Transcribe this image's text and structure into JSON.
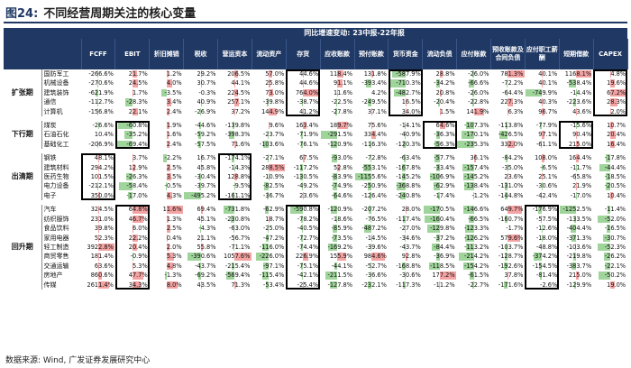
{
  "figure": {
    "label": "图24:",
    "title": "不同经营周期关注的核心变量"
  },
  "table": {
    "banner": "同比增速变动: 23中报-22年报",
    "columns": [
      "FCFF",
      "EBIT",
      "折旧摊销",
      "税收",
      "营运资本",
      "流动资产",
      "存货",
      "应收账款",
      "预付账款",
      "货币资金",
      "流动负债",
      "应付账款",
      "预收账款及合同负债",
      "应付职工薪酬",
      "短期借款",
      "CAPEX"
    ],
    "groups": [
      {
        "name": "扩张期",
        "rows": [
          {
            "industry": "国防军工",
            "values": [
              "-266.6%",
              "21.7%",
              "1.2%",
              "29.2%",
              "206.5%",
              "57.0%",
              "44.6%",
              "118.4%",
              "131.8%",
              "-587.9%",
              "28.8%",
              "-26.0%",
              "781.3%",
              "40.1%",
              "1168.1%",
              "4.8%"
            ]
          },
          {
            "industry": "机械设备",
            "values": [
              "-270.6%",
              "24.5%",
              "4.0%",
              "30.7%",
              "44.1%",
              "25.8%",
              "44.6%",
              "91.1%",
              "-393.4%",
              "-710.3%",
              "-34.2%",
              "-66.6%",
              "-72.2%",
              "40.1%",
              "-538.4%",
              "19.6%"
            ]
          },
          {
            "industry": "建筑装饰",
            "values": [
              "-621.9%",
              "1.7%",
              "-3.5%",
              "-0.3%",
              "224.5%",
              "73.0%",
              "764.0%",
              "11.6%",
              "4.2%",
              "-482.7%",
              "20.8%",
              "-26.0%",
              "-64.4%",
              "-749.9%",
              "-14.4%",
              "67.2%"
            ]
          },
          {
            "industry": "通信",
            "values": [
              "-112.7%",
              "-28.3%",
              "3.4%",
              "40.9%",
              "257.1%",
              "-39.8%",
              "-38.7%",
              "-22.5%",
              "-249.5%",
              "16.5%",
              "-20.4%",
              "-22.8%",
              "227.3%",
              "40.3%",
              "-223.6%",
              "28.3%"
            ]
          },
          {
            "industry": "计算机",
            "values": [
              "-156.8%",
              "22.1%",
              "2.4%",
              "-26.9%",
              "37.2%",
              "144.9%",
              "41.2%",
              "-27.8%",
              "37.1%",
              "34.0%",
              "1.5%",
              "141.9%",
              "6.3%",
              "96.7%",
              "43.6%",
              "2.0%"
            ]
          }
        ]
      },
      {
        "name": "下行期",
        "rows": [
          {
            "industry": "煤炭",
            "values": [
              "-26.6%",
              "-60.8%",
              "1.9%",
              "-44.6%",
              "-139.8%",
              "9.6%",
              "163.4%",
              "189.7%",
              "75.6%",
              "-14.1%",
              "64.6%",
              "-107.3%",
              "-113.8%",
              "-77.9%",
              "-15.6%",
              "10.7%"
            ]
          },
          {
            "industry": "石油石化",
            "values": [
              "10.4%",
              "-35.2%",
              "1.6%",
              "-59.2%",
              "-398.3%",
              "-23.7%",
              "-71.9%",
              "-291.5%",
              "334.4%",
              "-40.9%",
              "-36.3%",
              "-170.1%",
              "-426.5%",
              "97.1%",
              "90.4%",
              "20.4%"
            ]
          },
          {
            "industry": "基础化工",
            "values": [
              "-206.9%",
              "-69.4%",
              "2.4%",
              "-57.5%",
              "71.6%",
              "-103.6%",
              "-76.1%",
              "-120.9%",
              "-116.3%",
              "-120.3%",
              "-56.3%",
              "-235.3%",
              "332.0%",
              "-61.1%",
              "215.0%",
              "16.4%"
            ]
          }
        ]
      },
      {
        "name": "出清期",
        "rows": [
          {
            "industry": "钢铁",
            "values": [
              "48.1%",
              "3.7%",
              "-2.2%",
              "16.7%",
              "-174.1%",
              "-27.1%",
              "67.5%",
              "-93.0%",
              "-72.8%",
              "-63.4%",
              "-57.7%",
              "36.1%",
              "-84.2%",
              "108.0%",
              "164.4%",
              "-17.8%"
            ]
          },
          {
            "industry": "建筑材料",
            "values": [
              "294.2%",
              "12.9%",
              "2.5%",
              "45.8%",
              "-14.3%",
              "288.5%",
              "-117.2%",
              "52.8%",
              "-553.1%",
              "-167.8%",
              "-33.4%",
              "-157.4%",
              "-35.0%",
              "-6.5%",
              "-11.7%",
              "-44.4%"
            ]
          },
          {
            "industry": "医药生物",
            "values": [
              "101.5%",
              "-26.3%",
              "3.5%",
              "-30.4%",
              "128.8%",
              "-10.9%",
              "-130.5%",
              "-83.9%",
              "-1155.6%",
              "-145.2%",
              "-106.9%",
              "-145.2%",
              "23.6%",
              "25.1%",
              "-65.8%",
              "-18.5%"
            ]
          },
          {
            "industry": "电力设备",
            "values": [
              "-212.1%",
              "-58.4%",
              "-0.5%",
              "-39.7%",
              "-9.5%",
              "-82.5%",
              "-49.2%",
              "-74.9%",
              "-250.9%",
              "-368.8%",
              "-62.9%",
              "-138.4%",
              "-131.0%",
              "-30.6%",
              "21.9%",
              "-20.5%"
            ]
          },
          {
            "industry": "电子",
            "values": [
              "350.0%",
              "-17.0%",
              "4.3%",
              "-495.2%",
              "-161.1%",
              "-36.7%",
              "23.6%",
              "-64.6%",
              "-126.4%",
              "-240.8%",
              "-17.4%",
              "-1.2%",
              "-144.8%",
              "-42.4%",
              "-17.0%",
              "10.4%"
            ]
          }
        ]
      },
      {
        "name": "回升期",
        "rows": [
          {
            "industry": "汽车",
            "values": [
              "324.5%",
              "64.8%",
              "11.6%",
              "69.4%",
              "-731.8%",
              "-62.9%",
              "-590.8%",
              "-120.9%",
              "-207.2%",
              "28.0%",
              "-170.5%",
              "-146.6%",
              "649.7%",
              "-176.9%",
              "-1252.5%",
              "-11.4%"
            ]
          },
          {
            "industry": "纺织服饰",
            "values": [
              "231.0%",
              "46.7%",
              "1.3%",
              "45.1%",
              "-230.8%",
              "18.7%",
              "-78.2%",
              "-18.6%",
              "-76.5%",
              "-117.4%",
              "-160.4%",
              "-66.5%",
              "-160.7%",
              "-57.5%",
              "-133.5%",
              "-52.0%"
            ]
          },
          {
            "industry": "食品饮料",
            "values": [
              "39.8%",
              "6.0%",
              "2.5%",
              "-4.3%",
              "-63.0%",
              "-25.0%",
              "-40.5%",
              "-85.9%",
              "-487.2%",
              "-27.0%",
              "-129.8%",
              "-123.3%",
              "-1.7%",
              "-12.6%",
              "-404.4%",
              "-16.5%"
            ]
          },
          {
            "industry": "家用电器",
            "values": [
              "52.3%",
              "22.2%",
              "0.4%",
              "21.1%",
              "-56.7%",
              "-47.2%",
              "-72.7%",
              "-73.5%",
              "-14.5%",
              "-34.6%",
              "-37.2%",
              "-126.2%",
              "579.6%",
              "-18.0%",
              "-371.3%",
              "-30.7%"
            ]
          },
          {
            "industry": "轻工制造",
            "values": [
              "3922.8%",
              "20.4%",
              "2.0%",
              "55.8%",
              "-71.1%",
              "-116.0%",
              "-74.4%",
              "-169.2%",
              "-39.6%",
              "-43.7%",
              "-84.4%",
              "-113.2%",
              "-103.7%",
              "-48.8%",
              "-103.6%",
              "-52.3%"
            ]
          },
          {
            "industry": "商贸零售",
            "values": [
              "181.4%",
              "-0.9%",
              "5.3%",
              "-390.6%",
              "1057.6%",
              "-226.0%",
              "226.9%",
              "155.9%",
              "984.6%",
              "92.8%",
              "-36.9%",
              "-214.2%",
              "-128.7%",
              "-374.2%",
              "-219.8%",
              "-26.2%"
            ]
          },
          {
            "industry": "交通运输",
            "values": [
              "63.6%",
              "5.3%",
              "4.8%",
              "-43.7%",
              "-215.4%",
              "-97.1%",
              "-75.1%",
              "-44.1%",
              "-52.7%",
              "-168.8%",
              "-118.5%",
              "-154.2%",
              "-192.6%",
              "-154.5%",
              "-383.7%",
              "-22.1%"
            ]
          },
          {
            "industry": "房地产",
            "values": [
              "860.6%",
              "47.7%",
              "-1.3%",
              "-69.2%",
              "-569.4%",
              "-115.4%",
              "-42.1%",
              "-211.5%",
              "-36.6%",
              "-30.6%",
              "177.2%",
              "-61.5%",
              "37.8%",
              "-81.4%",
              "215.0%",
              "-50.2%"
            ]
          },
          {
            "industry": "传媒",
            "values": [
              "2611.4%",
              "34.3%",
              "8.0%",
              "43.5%",
              "71.3%",
              "-53.4%",
              "-25.4%",
              "-127.8%",
              "-232.1%",
              "-117.3%",
              "-11.2%",
              "-22.7%",
              "-171.6%",
              "-2.6%",
              "-129.9%",
              "19.0%"
            ]
          }
        ]
      }
    ]
  },
  "source": "数据来源: Wind, 广发证券发展研究中心",
  "colors": {
    "header": "#1f3864",
    "positive": "#f4a3a3",
    "negative": "#9fd49a"
  }
}
